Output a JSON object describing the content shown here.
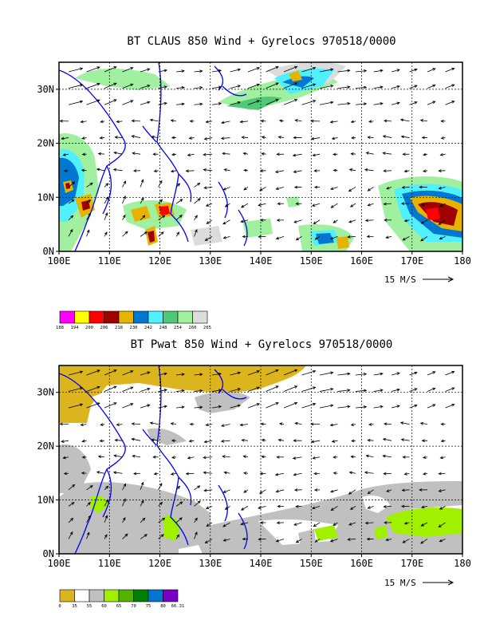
{
  "panels": [
    {
      "title": "BT CLAUS 850 Wind + Gyrelocs 970518/0000",
      "x_ticks": [
        "100E",
        "110E",
        "120E",
        "130E",
        "140E",
        "150E",
        "160E",
        "170E",
        "180"
      ],
      "y_ticks": [
        "0N",
        "10N",
        "20N",
        "30N"
      ],
      "scale_label": "15 M/S",
      "legend": {
        "colors": [
          "#ff00ff",
          "#ffff00",
          "#ff0000",
          "#a00000",
          "#e6b400",
          "#0078d2",
          "#50f0ff",
          "#50c878",
          "#a0f0a0",
          "#dcdcdc"
        ],
        "labels": [
          "188",
          "194",
          "200",
          "206",
          "218",
          "230",
          "242",
          "248",
          "254",
          "260",
          "265"
        ]
      }
    },
    {
      "title": "BT Pwat 850 Wind + Gyrelocs 970518/0000",
      "x_ticks": [
        "100E",
        "110E",
        "120E",
        "130E",
        "140E",
        "150E",
        "160E",
        "170E",
        "180"
      ],
      "y_ticks": [
        "0N",
        "10N",
        "20N",
        "30N"
      ],
      "scale_label": "15 M/S",
      "legend": {
        "colors": [
          "#dcb41e",
          "#ffffff",
          "#c0c0c0",
          "#a0f000",
          "#50b400",
          "#008000",
          "#0078d2",
          "#7800c8"
        ],
        "labels": [
          "0",
          "35",
          "55",
          "60",
          "65",
          "70",
          "75",
          "80",
          "66.31"
        ]
      }
    }
  ],
  "chart_data": [
    {
      "type": "heatmap",
      "title": "BT CLAUS 850 Wind + Gyrelocs 970518/0000",
      "xlabel": "",
      "ylabel": "",
      "xlim": [
        100,
        180
      ],
      "ylim": [
        0,
        35
      ],
      "x_unit": "degrees E",
      "y_unit": "degrees N",
      "grid": true,
      "overlay": "wind vectors, reference arrow 15 M/S",
      "colorbar_levels": [
        188,
        194,
        200,
        206,
        218,
        230,
        242,
        248,
        254,
        260,
        265
      ],
      "colorbar_colors": [
        "#ff00ff",
        "#ffff00",
        "#ff0000",
        "#a00000",
        "#e6b400",
        "#0078d2",
        "#50f0ff",
        "#50c878",
        "#a0f0a0",
        "#dcdcdc"
      ]
    },
    {
      "type": "heatmap",
      "title": "BT Pwat 850 Wind + Gyrelocs 970518/0000",
      "xlabel": "",
      "ylabel": "",
      "xlim": [
        100,
        180
      ],
      "ylim": [
        0,
        35
      ],
      "x_unit": "degrees E",
      "y_unit": "degrees N",
      "grid": true,
      "overlay": "wind vectors, reference arrow 15 M/S",
      "colorbar_levels": [
        0,
        35,
        55,
        60,
        65,
        70,
        75,
        80,
        66.31
      ],
      "colorbar_colors": [
        "#dcb41e",
        "#ffffff",
        "#c0c0c0",
        "#a0f000",
        "#50b400",
        "#008000",
        "#0078d2",
        "#7800c8"
      ]
    }
  ]
}
